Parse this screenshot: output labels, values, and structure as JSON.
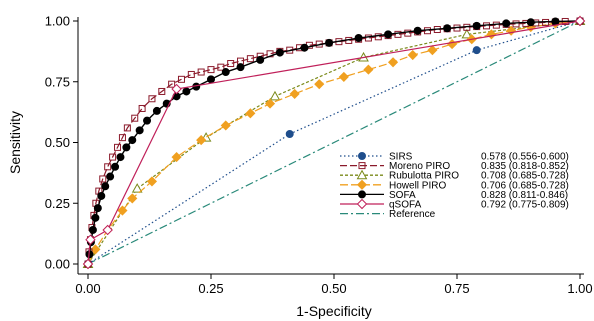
{
  "chart_data": {
    "type": "line",
    "xlabel": "1-Specificity",
    "ylabel": "Sensitivity",
    "xlim": [
      0,
      1
    ],
    "ylim": [
      0,
      1
    ],
    "x_ticks": [
      "0.00",
      "0.25",
      "0.50",
      "0.75",
      "1.00"
    ],
    "y_ticks": [
      "0.00",
      "0.25",
      "0.50",
      "0.75",
      "1.00"
    ],
    "x_tick_values": [
      0,
      0.25,
      0.5,
      0.75,
      1
    ],
    "y_tick_values": [
      0,
      0.25,
      0.5,
      0.75,
      1
    ],
    "grid": false,
    "legend_position": "lower-right",
    "series": [
      {
        "name": "SIRS",
        "auc": "0.578 (0.556-0.600)",
        "color": "#1f4e8c",
        "dash": "1.5,2.5",
        "marker": "circle-filled",
        "x": [
          0,
          0.41,
          0.79,
          1
        ],
        "y": [
          0,
          0.535,
          0.88,
          1
        ]
      },
      {
        "name": "Moreno PIRO",
        "auc": "0.835 (0.818-0.852)",
        "color": "#8b1a2b",
        "dash": "7,3",
        "marker": "square-open",
        "x": [
          0,
          0.002,
          0.005,
          0.008,
          0.012,
          0.016,
          0.022,
          0.03,
          0.04,
          0.05,
          0.06,
          0.07,
          0.08,
          0.095,
          0.11,
          0.13,
          0.15,
          0.17,
          0.19,
          0.21,
          0.23,
          0.25,
          0.27,
          0.29,
          0.31,
          0.33,
          0.35,
          0.37,
          0.39,
          0.41,
          0.43,
          0.45,
          0.47,
          0.49,
          0.51,
          0.53,
          0.55,
          0.57,
          0.59,
          0.61,
          0.63,
          0.65,
          0.67,
          0.69,
          0.71,
          0.73,
          0.75,
          0.77,
          0.79,
          0.81,
          0.83,
          0.85,
          0.87,
          0.89,
          0.91,
          0.93,
          0.95,
          0.97,
          1
        ],
        "y": [
          0,
          0.05,
          0.1,
          0.15,
          0.2,
          0.25,
          0.3,
          0.35,
          0.4,
          0.44,
          0.48,
          0.52,
          0.56,
          0.6,
          0.64,
          0.68,
          0.71,
          0.74,
          0.76,
          0.78,
          0.79,
          0.8,
          0.81,
          0.825,
          0.835,
          0.845,
          0.855,
          0.865,
          0.875,
          0.88,
          0.89,
          0.9,
          0.905,
          0.91,
          0.915,
          0.92,
          0.925,
          0.93,
          0.935,
          0.94,
          0.945,
          0.95,
          0.955,
          0.96,
          0.965,
          0.968,
          0.971,
          0.974,
          0.977,
          0.98,
          0.983,
          0.986,
          0.988,
          0.99,
          0.992,
          0.994,
          0.996,
          0.998,
          1
        ]
      },
      {
        "name": "Rubulotta PIRO",
        "auc": "0.708 (0.685-0.728)",
        "color": "#7a8a1a",
        "dash": "3,2",
        "marker": "triangle-open",
        "x": [
          0,
          0.1,
          0.24,
          0.38,
          0.56,
          0.77,
          1
        ],
        "y": [
          0,
          0.31,
          0.52,
          0.69,
          0.85,
          0.945,
          1
        ]
      },
      {
        "name": "Howell PIRO",
        "auc": "0.706 (0.685-0.728)",
        "color": "#f0a020",
        "dash": "8,3",
        "marker": "diamond-filled",
        "x": [
          0,
          0.015,
          0.04,
          0.07,
          0.09,
          0.13,
          0.18,
          0.23,
          0.28,
          0.33,
          0.37,
          0.42,
          0.47,
          0.52,
          0.57,
          0.62,
          0.66,
          0.7,
          0.74,
          0.78,
          0.82,
          0.86,
          0.9,
          0.95,
          1
        ],
        "y": [
          0,
          0.06,
          0.14,
          0.22,
          0.27,
          0.34,
          0.44,
          0.51,
          0.57,
          0.62,
          0.66,
          0.7,
          0.74,
          0.77,
          0.8,
          0.83,
          0.86,
          0.88,
          0.905,
          0.925,
          0.945,
          0.96,
          0.975,
          0.99,
          1
        ]
      },
      {
        "name": "SOFA",
        "auc": "0.828 (0.811-0.846)",
        "color": "#000000",
        "dash": "",
        "marker": "circle-filled",
        "x": [
          0,
          0.003,
          0.006,
          0.01,
          0.015,
          0.02,
          0.027,
          0.035,
          0.045,
          0.055,
          0.066,
          0.078,
          0.09,
          0.105,
          0.12,
          0.14,
          0.16,
          0.18,
          0.2,
          0.22,
          0.25,
          0.28,
          0.31,
          0.35,
          0.39,
          0.44,
          0.49,
          0.55,
          0.61,
          0.67,
          0.73,
          0.79,
          0.85,
          0.9,
          0.95,
          1
        ],
        "y": [
          0,
          0.04,
          0.09,
          0.14,
          0.19,
          0.23,
          0.28,
          0.32,
          0.36,
          0.4,
          0.44,
          0.48,
          0.51,
          0.55,
          0.59,
          0.63,
          0.66,
          0.69,
          0.71,
          0.73,
          0.76,
          0.79,
          0.81,
          0.84,
          0.87,
          0.89,
          0.91,
          0.93,
          0.945,
          0.96,
          0.97,
          0.98,
          0.99,
          0.995,
          0.998,
          1
        ]
      },
      {
        "name": "qSOFA",
        "auc": "0.792 (0.775-0.809)",
        "color": "#c0205a",
        "dash": "",
        "marker": "diamond-open",
        "x": [
          0,
          0.005,
          0.04,
          0.18,
          1
        ],
        "y": [
          0,
          0.1,
          0.14,
          0.72,
          1
        ]
      },
      {
        "name": "Reference",
        "auc": "",
        "color": "#2a8a7a",
        "dash": "8,3,2,3",
        "marker": "none",
        "x": [
          0,
          1
        ],
        "y": [
          0,
          1
        ]
      }
    ]
  }
}
